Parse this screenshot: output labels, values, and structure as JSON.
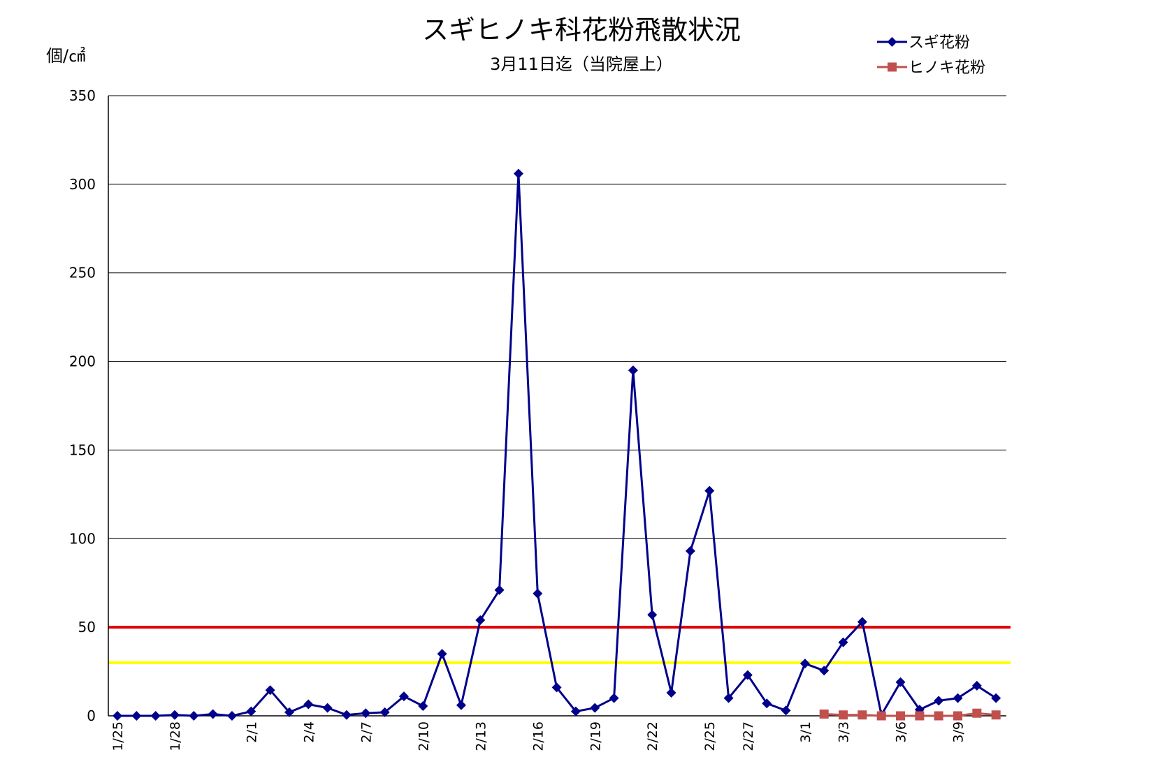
{
  "chart_data": {
    "type": "line",
    "title": "スギヒノキ科花粉飛散状況",
    "subtitle": "3月11日迄（当院屋上）",
    "ylabel": "個/㎠",
    "ylim": [
      0,
      350
    ],
    "yticks": [
      0,
      50,
      100,
      150,
      200,
      250,
      300,
      350
    ],
    "grid": true,
    "legend_position": "top-right",
    "x": [
      "1/25",
      "1/26",
      "1/27",
      "1/28",
      "1/29",
      "1/30",
      "1/31",
      "2/1",
      "2/2",
      "2/3",
      "2/4",
      "2/5",
      "2/6",
      "2/7",
      "2/8",
      "2/9",
      "2/10",
      "2/11",
      "2/12",
      "2/13",
      "2/14",
      "2/15",
      "2/16",
      "2/17",
      "2/18",
      "2/19",
      "2/20",
      "2/21",
      "2/22",
      "2/23",
      "2/24",
      "2/25",
      "2/26",
      "2/27",
      "2/28",
      "2/29",
      "3/1",
      "3/2",
      "3/3",
      "3/4",
      "3/5",
      "3/6",
      "3/7",
      "3/8",
      "3/9",
      "3/10",
      "3/11"
    ],
    "xtick_labels": [
      "1/25",
      "1/28",
      "2/1",
      "2/4",
      "2/7",
      "2/10",
      "2/13",
      "2/16",
      "2/19",
      "2/22",
      "2/25",
      "2/27",
      "3/1",
      "3/3",
      "3/6",
      "3/9"
    ],
    "series": [
      {
        "name": "スギ花粉",
        "color": "#00008B",
        "marker": "diamond",
        "values": [
          0,
          0,
          0,
          0.5,
          0,
          1,
          0,
          2.5,
          14.5,
          2,
          6.5,
          4.5,
          0.5,
          1.5,
          2,
          11,
          5.5,
          35,
          6,
          54,
          71,
          306,
          69,
          16,
          2.5,
          4.5,
          10,
          195,
          57,
          13,
          93,
          127,
          10,
          23,
          7,
          3,
          29.5,
          25.5,
          41.5,
          53,
          0.5,
          19,
          3.5,
          8.5,
          10,
          17,
          10
        ]
      },
      {
        "name": "ヒノキ花粉",
        "color": "#C0504D",
        "marker": "square",
        "values": [
          null,
          null,
          null,
          null,
          null,
          null,
          null,
          null,
          null,
          null,
          null,
          null,
          null,
          null,
          null,
          null,
          null,
          null,
          null,
          null,
          null,
          null,
          null,
          null,
          null,
          null,
          null,
          null,
          null,
          null,
          null,
          null,
          null,
          null,
          null,
          null,
          null,
          1,
          0.5,
          0.5,
          0,
          0,
          0,
          0,
          0,
          1.5,
          0.5
        ]
      }
    ],
    "reference_lines": [
      {
        "value": 50,
        "color": "#E00000"
      },
      {
        "value": 30,
        "color": "#FFFF00"
      }
    ]
  }
}
